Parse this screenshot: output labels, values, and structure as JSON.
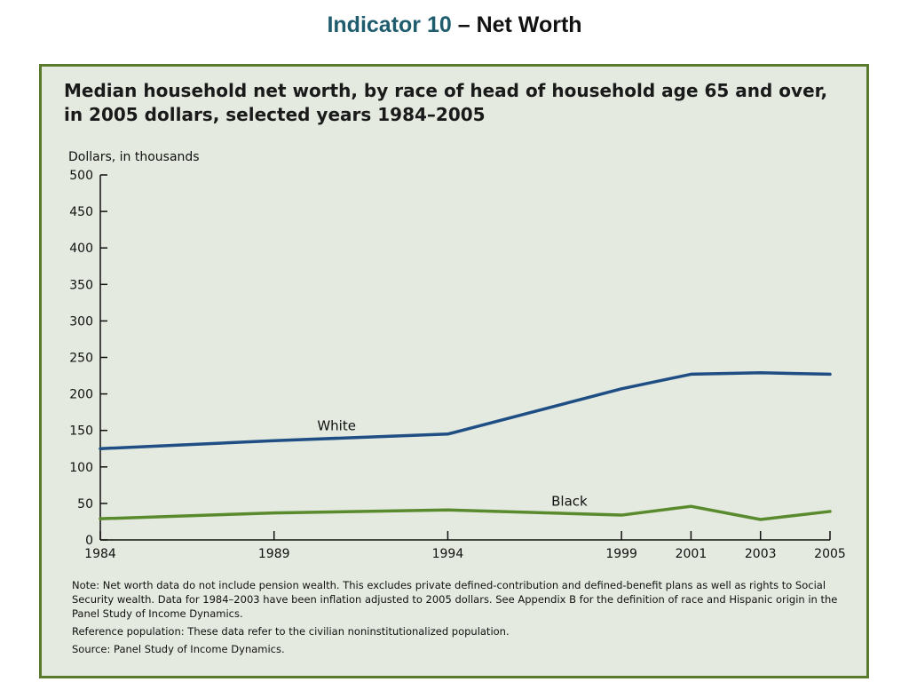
{
  "slide": {
    "title_accent": "Indicator 10",
    "title_rest": " – Net Worth"
  },
  "notes": {
    "note": "Note: Net worth data do not include pension wealth. This excludes private defined-contribution and defined-benefit plans as well as rights to Social Security wealth. Data for 1984–2003 have been inflation adjusted to 2005 dollars. See Appendix B for the definition of race and Hispanic origin in the Panel Study of Income Dynamics.",
    "reference": "Reference population: These data refer to the civilian noninstitutionalized population.",
    "source": "Source: Panel Study of Income Dynamics."
  },
  "colors": {
    "frame": "#5a7a2e",
    "background": "#e4eadf",
    "white_series": "#1f4e85",
    "black_series": "#5a8a2e"
  },
  "chart_data": {
    "type": "line",
    "title_line1": "Median household net worth, by race of head of household age 65 and over,",
    "title_line2": "in 2005 dollars, selected years 1984–2005",
    "ylabel": "Dollars, in thousands",
    "xlabel": "",
    "x": [
      1984,
      1989,
      1994,
      1999,
      2001,
      2003,
      2005
    ],
    "xlim": [
      1984,
      2005
    ],
    "ylim": [
      0,
      500
    ],
    "yticks": [
      0,
      50,
      100,
      150,
      200,
      250,
      300,
      350,
      400,
      450,
      500
    ],
    "grid": false,
    "series": [
      {
        "name": "White",
        "values": [
          125,
          136,
          145,
          207,
          227,
          229,
          227
        ]
      },
      {
        "name": "Black",
        "values": [
          29,
          37,
          41,
          34,
          46,
          28,
          39
        ]
      }
    ]
  }
}
